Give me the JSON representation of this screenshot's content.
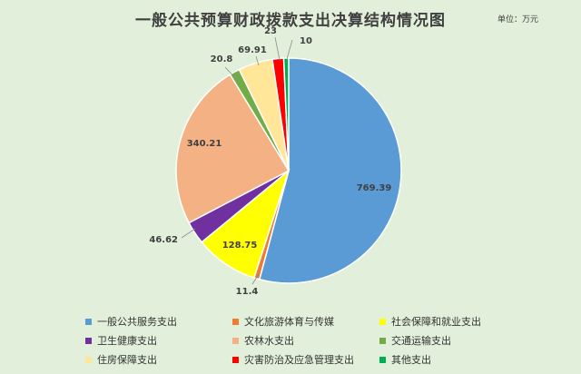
{
  "title": "一般公共预算财政拨款支出决算结构情况图",
  "unit_label": "单位：万元",
  "chart_data": {
    "type": "pie",
    "title": "一般公共预算财政拨款支出决算结构情况图",
    "unit": "万元",
    "legend_position": "bottom",
    "categories": [
      "一般公共服务支出",
      "文化旅游体育与传媒",
      "社会保障和就业支出",
      "卫生健康支出",
      "农林水支出",
      "交通运输支出",
      "住房保障支出",
      "灾害防治及应急管理支出",
      "其他支出"
    ],
    "values": [
      769.39,
      11.4,
      128.75,
      46.62,
      340.21,
      20.8,
      69.91,
      23,
      10
    ],
    "value_labels": [
      "769.39",
      "11.4",
      "128.75",
      "46.62",
      "340.21",
      "20.8",
      "69.91",
      "23",
      "10"
    ],
    "colors": [
      "#5b9bd5",
      "#ed7d31",
      "#ffff00",
      "#7030a0",
      "#f4b183",
      "#70ad47",
      "#ffe699",
      "#ff0000",
      "#00b050"
    ]
  }
}
